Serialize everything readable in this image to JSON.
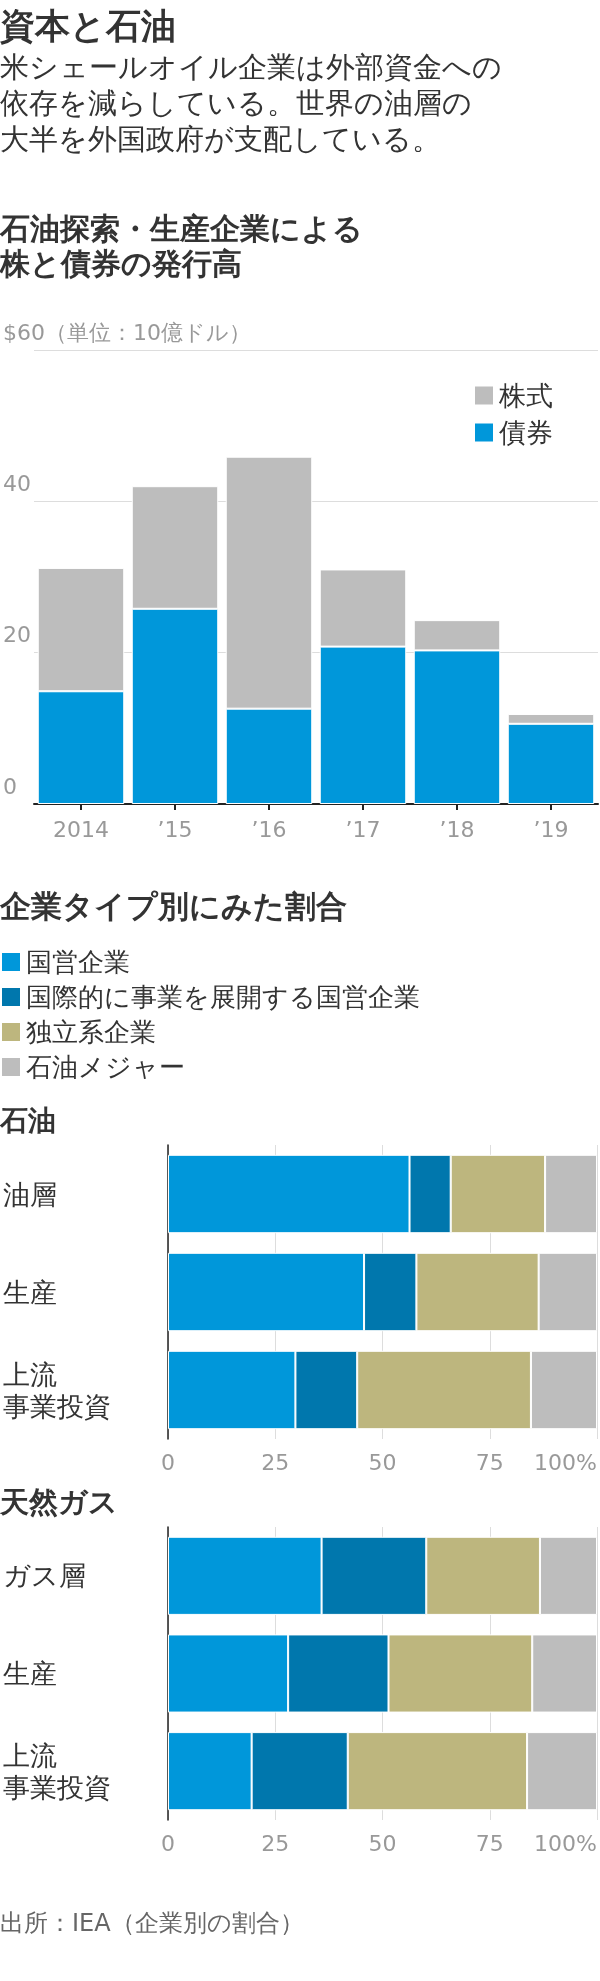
{
  "chart_data": [
    {
      "type": "bar",
      "title": "資本と石油",
      "subtitle": "米シェールオイル企業は外部資金への依存を減らしている。世界の油層の大半を外国政府が支配している。",
      "annotations": [
        "石油探索・生産企業による株と債券の発行高"
      ],
      "categories": [
        "2014",
        "’15",
        "’16",
        "’17",
        "’18",
        "’19"
      ],
      "series": [
        {
          "name": "債券",
          "color": "#0097da",
          "values": [
            14.9,
            25.8,
            12.6,
            20.8,
            20.3,
            10.6
          ]
        },
        {
          "name": "株式",
          "color": "#bdbdbd",
          "values": [
            16.3,
            16.2,
            33.3,
            10.2,
            4,
            1.3
          ]
        }
      ],
      "stacked": true,
      "ylim": [
        0,
        60
      ],
      "yticks": [
        0,
        20,
        40,
        {
          "value": 60,
          "label": "$60（単位：10億ドル）"
        }
      ],
      "grid": "y",
      "legend": "top right"
    },
    {
      "type": "bar",
      "orientation": "horizontal",
      "stacked": true,
      "title": "企業タイプ別にみた割合",
      "subtitle": "石油",
      "categories": [
        "油層",
        "生産",
        "上流事業投資"
      ],
      "series": [
        {
          "name": "国営企業",
          "color": "#0097da",
          "values": [
            56.3,
            45.7,
            29.7
          ]
        },
        {
          "name": "国際的に事業を展開する国営企業",
          "color": "#0077ad",
          "values": [
            9.6,
            12.2,
            14.4
          ]
        },
        {
          "name": "独立系企業",
          "color": "#bdb67e",
          "values": [
            22,
            28.5,
            40.5
          ]
        },
        {
          "name": "石油メジャー",
          "color": "#bdbdbd",
          "values": [
            12.1,
            13.6,
            15.4
          ]
        }
      ],
      "xlim": [
        0,
        100
      ],
      "xticks": [
        0,
        25,
        50,
        75,
        {
          "value": 100,
          "label": "100%"
        }
      ],
      "grid": "x",
      "legend": "top left"
    },
    {
      "type": "bar",
      "orientation": "horizontal",
      "stacked": true,
      "title": "天然ガス",
      "categories": [
        "ガス層",
        "生産",
        "上流事業投資"
      ],
      "series": [
        {
          "color": "#0097da",
          "values": [
            35.8,
            28,
            19.5
          ]
        },
        {
          "color": "#0077ad",
          "values": [
            24.4,
            23.4,
            22.4
          ]
        },
        {
          "color": "#bdb67e",
          "values": [
            26.5,
            33.5,
            41.8
          ]
        },
        {
          "color": "#bdbdbd",
          "values": [
            13.3,
            15.1,
            16.3
          ]
        }
      ],
      "xlim": [
        0,
        100
      ],
      "xticks": [
        0,
        25,
        50,
        75,
        {
          "value": 100,
          "label": "100%"
        }
      ],
      "grid": "x",
      "annotations": [
        "出所：IEA（企業別の割合）"
      ]
    }
  ]
}
